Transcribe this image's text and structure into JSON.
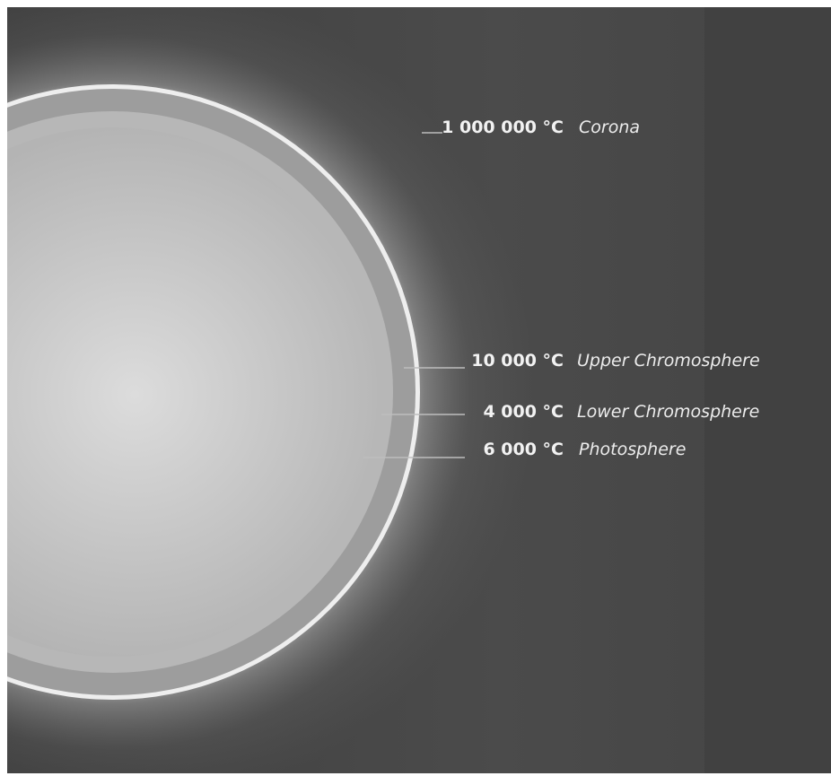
{
  "layers": [
    {
      "temperature": "1 000 000 °C",
      "name": "Corona"
    },
    {
      "temperature": "10 000 °C",
      "name": "Upper Chromosphere"
    },
    {
      "temperature": "4 000 °C",
      "name": "Lower Chromosphere"
    },
    {
      "temperature": "6 000 °C",
      "name": "Photosphere"
    }
  ]
}
